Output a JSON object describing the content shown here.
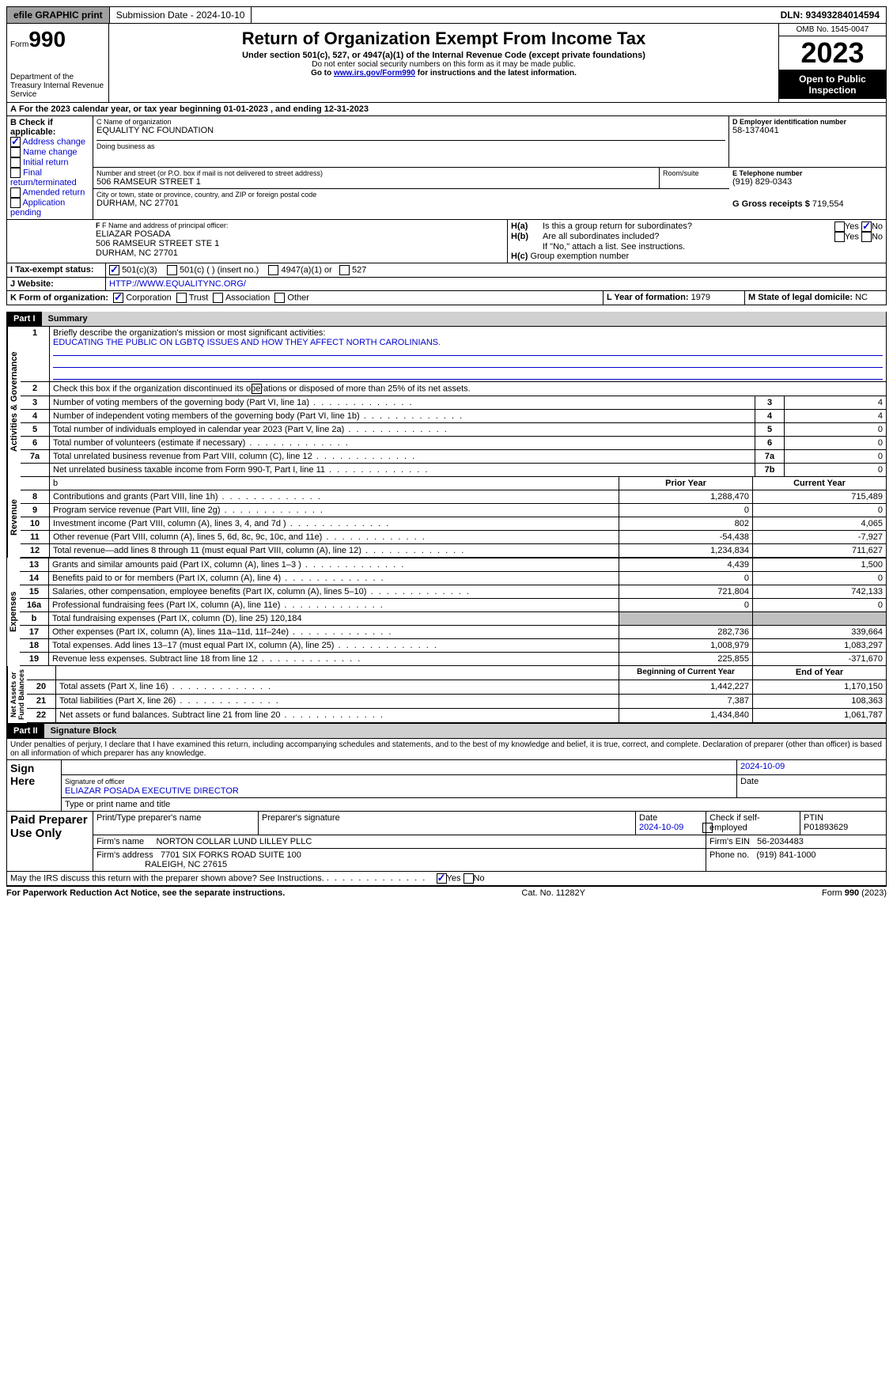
{
  "topbar": {
    "efile": "efile GRAPHIC print",
    "submission": "Submission Date - 2024-10-10",
    "dln": "DLN: 93493284014594"
  },
  "header": {
    "form_word": "Form",
    "form_num": "990",
    "dept": "Department of the Treasury Internal Revenue Service",
    "title": "Return of Organization Exempt From Income Tax",
    "sub": "Under section 501(c), 527, or 4947(a)(1) of the Internal Revenue Code (except private foundations)",
    "note1": "Do not enter social security numbers on this form as it may be made public.",
    "note2_a": "Go to ",
    "note2_link": "www.irs.gov/Form990",
    "note2_b": " for instructions and the latest information.",
    "omb": "OMB No. 1545-0047",
    "year": "2023",
    "open": "Open to Public Inspection"
  },
  "line_a": "For the 2023 calendar year, or tax year beginning 01-01-2023   , and ending 12-31-2023",
  "b": {
    "label": "B Check if applicable:",
    "items": [
      "Address change",
      "Name change",
      "Initial return",
      "Final return/terminated",
      "Amended return",
      "Application pending"
    ],
    "checked": [
      true,
      false,
      false,
      false,
      false,
      false
    ]
  },
  "c": {
    "name_label": "C Name of organization",
    "name": "EQUALITY NC FOUNDATION",
    "dba_label": "Doing business as",
    "addr_label": "Number and street (or P.O. box if mail is not delivered to street address)",
    "addr": "506 RAMSEUR STREET 1",
    "room_label": "Room/suite",
    "city_label": "City or town, state or province, country, and ZIP or foreign postal code",
    "city": "DURHAM, NC  27701"
  },
  "d": {
    "label": "D Employer identification number",
    "val": "58-1374041"
  },
  "e": {
    "label": "E Telephone number",
    "val": "(919) 829-0343"
  },
  "g": {
    "label": "G Gross receipts $",
    "val": "719,554"
  },
  "f": {
    "label": "F  Name and address of principal officer:",
    "lines": [
      "ELIAZAR POSADA",
      "506 RAMSEUR STREET STE 1",
      "DURHAM, NC  27701"
    ]
  },
  "h": {
    "a": "Is this a group return for subordinates?",
    "b": "Are all subordinates included?",
    "note": "If \"No,\" attach a list. See instructions.",
    "c": "Group exemption number"
  },
  "i": {
    "label": "Tax-exempt status:",
    "opts": [
      "501(c)(3)",
      "501(c) (  ) (insert no.)",
      "4947(a)(1) or",
      "527"
    ]
  },
  "j": {
    "label": "Website:",
    "val": "HTTP://WWW.EQUALITYNC.ORG/"
  },
  "k": {
    "label": "K Form of organization:",
    "opts": [
      "Corporation",
      "Trust",
      "Association",
      "Other"
    ]
  },
  "l": {
    "label": "L Year of formation:",
    "val": "1979"
  },
  "m": {
    "label": "M State of legal domicile:",
    "val": "NC"
  },
  "part1": {
    "label": "Part I",
    "title": "Summary"
  },
  "summary": {
    "l1_label": "Briefly describe the organization's mission or most significant activities:",
    "l1_text": "EDUCATING THE PUBLIC ON LGBTQ ISSUES AND HOW THEY AFFECT NORTH CAROLINIANS.",
    "l2": "Check this box      if the organization discontinued its operations or disposed of more than 25% of its net assets.",
    "rows_gov": [
      {
        "n": "3",
        "t": "Number of voting members of the governing body (Part VI, line 1a)",
        "v": "4"
      },
      {
        "n": "4",
        "t": "Number of independent voting members of the governing body (Part VI, line 1b)",
        "v": "4"
      },
      {
        "n": "5",
        "t": "Total number of individuals employed in calendar year 2023 (Part V, line 2a)",
        "v": "0"
      },
      {
        "n": "6",
        "t": "Total number of volunteers (estimate if necessary)",
        "v": "0"
      },
      {
        "n": "7a",
        "t": "Total unrelated business revenue from Part VIII, column (C), line 12",
        "v": "0"
      },
      {
        "n": "",
        "t": "Net unrelated business taxable income from Form 990-T, Part I, line 11",
        "ln": "7b",
        "v": "0"
      }
    ],
    "headers": {
      "prior": "Prior Year",
      "current": "Current Year",
      "begin": "Beginning of Current Year",
      "end": "End of Year"
    },
    "rev": [
      {
        "n": "8",
        "t": "Contributions and grants (Part VIII, line 1h)",
        "p": "1,288,470",
        "c": "715,489"
      },
      {
        "n": "9",
        "t": "Program service revenue (Part VIII, line 2g)",
        "p": "0",
        "c": "0"
      },
      {
        "n": "10",
        "t": "Investment income (Part VIII, column (A), lines 3, 4, and 7d )",
        "p": "802",
        "c": "4,065"
      },
      {
        "n": "11",
        "t": "Other revenue (Part VIII, column (A), lines 5, 6d, 8c, 9c, 10c, and 11e)",
        "p": "-54,438",
        "c": "-7,927"
      },
      {
        "n": "12",
        "t": "Total revenue—add lines 8 through 11 (must equal Part VIII, column (A), line 12)",
        "p": "1,234,834",
        "c": "711,627"
      }
    ],
    "exp": [
      {
        "n": "13",
        "t": "Grants and similar amounts paid (Part IX, column (A), lines 1–3 )",
        "p": "4,439",
        "c": "1,500"
      },
      {
        "n": "14",
        "t": "Benefits paid to or for members (Part IX, column (A), line 4)",
        "p": "0",
        "c": "0"
      },
      {
        "n": "15",
        "t": "Salaries, other compensation, employee benefits (Part IX, column (A), lines 5–10)",
        "p": "721,804",
        "c": "742,133"
      },
      {
        "n": "16a",
        "t": "Professional fundraising fees (Part IX, column (A), line 11e)",
        "p": "0",
        "c": "0"
      },
      {
        "n": "b",
        "t": "Total fundraising expenses (Part IX, column (D), line 25) 120,184",
        "p": "",
        "c": "",
        "gray": true
      },
      {
        "n": "17",
        "t": "Other expenses (Part IX, column (A), lines 11a–11d, 11f–24e)",
        "p": "282,736",
        "c": "339,664"
      },
      {
        "n": "18",
        "t": "Total expenses. Add lines 13–17 (must equal Part IX, column (A), line 25)",
        "p": "1,008,979",
        "c": "1,083,297"
      },
      {
        "n": "19",
        "t": "Revenue less expenses. Subtract line 18 from line 12",
        "p": "225,855",
        "c": "-371,670"
      }
    ],
    "net": [
      {
        "n": "20",
        "t": "Total assets (Part X, line 16)",
        "p": "1,442,227",
        "c": "1,170,150"
      },
      {
        "n": "21",
        "t": "Total liabilities (Part X, line 26)",
        "p": "7,387",
        "c": "108,363"
      },
      {
        "n": "22",
        "t": "Net assets or fund balances. Subtract line 21 from line 20",
        "p": "1,434,840",
        "c": "1,061,787"
      }
    ]
  },
  "part2": {
    "label": "Part II",
    "title": "Signature Block"
  },
  "sig": {
    "decl": "Under penalties of perjury, I declare that I have examined this return, including accompanying schedules and statements, and to the best of my knowledge and belief, it is true, correct, and complete. Declaration of preparer (other than officer) is based on all information of which preparer has any knowledge.",
    "sign_here": "Sign Here",
    "sig_officer": "Signature of officer",
    "date": "Date",
    "date_val": "2024-10-09",
    "officer": "ELIAZAR POSADA  EXECUTIVE DIRECTOR",
    "type_label": "Type or print name and title",
    "paid": "Paid Preparer Use Only",
    "prep_name_label": "Print/Type preparer's name",
    "prep_sig_label": "Preparer's signature",
    "prep_date": "2024-10-09",
    "check_self": "Check       if self-employed",
    "ptin_label": "PTIN",
    "ptin": "P01893629",
    "firm_name_label": "Firm's name",
    "firm_name": "NORTON COLLAR LUND LILLEY PLLC",
    "firm_ein_label": "Firm's EIN",
    "firm_ein": "56-2034483",
    "firm_addr_label": "Firm's address",
    "firm_addr1": "7701 SIX FORKS ROAD SUITE 100",
    "firm_addr2": "RALEIGH, NC  27615",
    "phone_label": "Phone no.",
    "phone": "(919) 841-1000",
    "discuss": "May the IRS discuss this return with the preparer shown above? See Instructions."
  },
  "footer": {
    "l": "For Paperwork Reduction Act Notice, see the separate instructions.",
    "m": "Cat. No. 11282Y",
    "r": "Form 990 (2023)"
  }
}
